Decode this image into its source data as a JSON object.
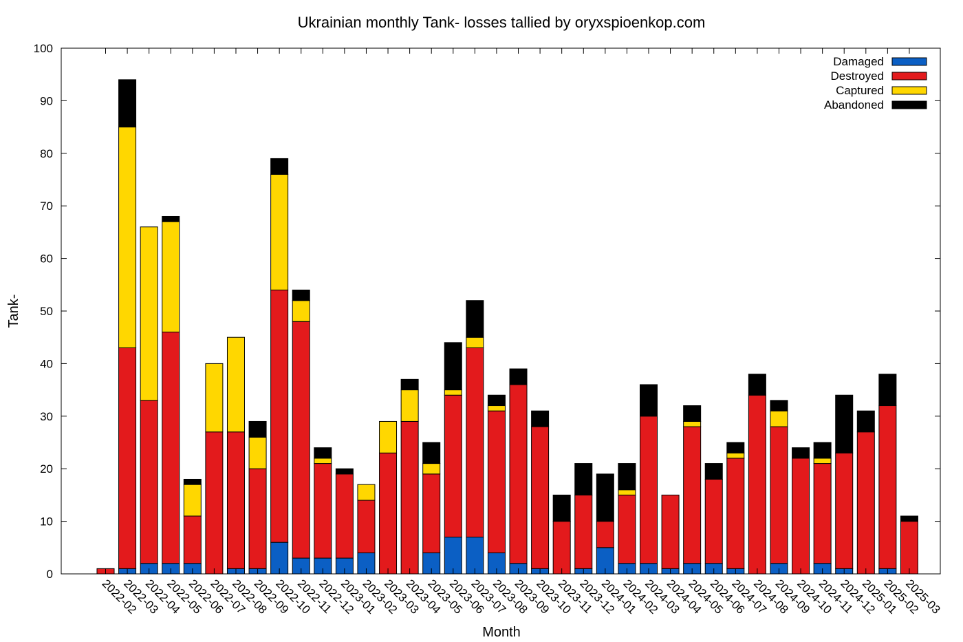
{
  "chart_data": {
    "type": "bar",
    "stacked": true,
    "title": "Ukrainian monthly Tank- losses tallied by oryxspioenkop.com",
    "xlabel": "Month",
    "ylabel": "Tank-",
    "ylim": [
      0,
      100
    ],
    "yticks": [
      "0",
      "10",
      "20",
      "30",
      "40",
      "50",
      "60",
      "70",
      "80",
      "90",
      "100"
    ],
    "legend_position": "top-right",
    "categories": [
      "2022-02",
      "2022-03",
      "2022-04",
      "2022-05",
      "2022-06",
      "2022-07",
      "2022-08",
      "2022-09",
      "2022-10",
      "2022-11",
      "2022-12",
      "2023-01",
      "2023-02",
      "2023-03",
      "2023-04",
      "2023-05",
      "2023-06",
      "2023-07",
      "2023-08",
      "2023-09",
      "2023-10",
      "2023-11",
      "2023-12",
      "2024-01",
      "2024-02",
      "2024-03",
      "2024-04",
      "2024-05",
      "2024-06",
      "2024-07",
      "2024-08",
      "2024-09",
      "2024-10",
      "2024-11",
      "2024-12",
      "2025-01",
      "2025-02",
      "2025-03"
    ],
    "series": [
      {
        "name": "Damaged",
        "color": "#0b5fc4",
        "values": [
          0,
          1,
          2,
          2,
          2,
          0,
          1,
          1,
          6,
          3,
          3,
          3,
          4,
          0,
          0,
          4,
          7,
          7,
          4,
          2,
          1,
          0,
          1,
          5,
          2,
          2,
          1,
          2,
          2,
          1,
          0,
          2,
          0,
          2,
          1,
          0,
          1,
          0
        ]
      },
      {
        "name": "Destroyed",
        "color": "#e31a1c",
        "values": [
          1,
          42,
          31,
          44,
          9,
          27,
          26,
          19,
          48,
          45,
          18,
          16,
          10,
          23,
          29,
          15,
          27,
          36,
          27,
          34,
          27,
          10,
          14,
          5,
          13,
          28,
          14,
          26,
          16,
          21,
          34,
          26,
          22,
          19,
          22,
          27,
          31,
          10
        ]
      },
      {
        "name": "Captured",
        "color": "#ffd700",
        "values": [
          0,
          42,
          33,
          21,
          6,
          13,
          18,
          6,
          22,
          4,
          1,
          0,
          3,
          6,
          6,
          2,
          1,
          2,
          1,
          0,
          0,
          0,
          0,
          0,
          1,
          0,
          0,
          1,
          0,
          1,
          0,
          3,
          0,
          1,
          0,
          0,
          0,
          0
        ]
      },
      {
        "name": "Abandoned",
        "color": "#000000",
        "values": [
          0,
          9,
          0,
          1,
          1,
          0,
          0,
          3,
          3,
          2,
          2,
          1,
          0,
          0,
          2,
          4,
          9,
          7,
          2,
          3,
          3,
          5,
          6,
          9,
          5,
          6,
          0,
          3,
          3,
          2,
          4,
          2,
          2,
          3,
          11,
          4,
          6,
          1
        ]
      }
    ]
  }
}
